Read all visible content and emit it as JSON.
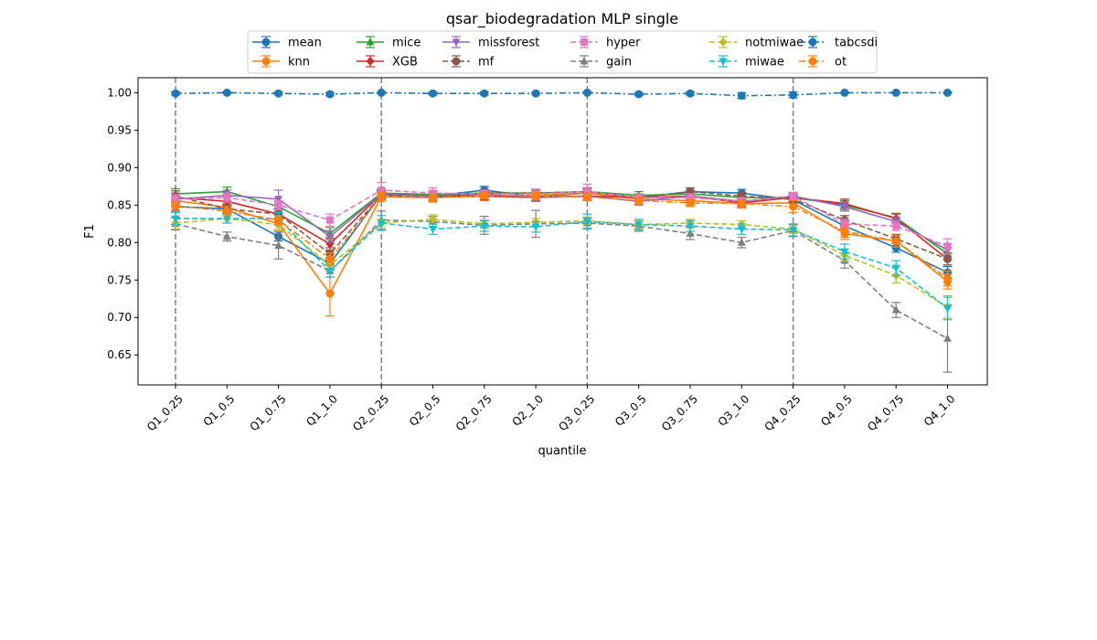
{
  "chart_data": {
    "type": "line",
    "title": "qsar_biodegradation MLP single",
    "xlabel": "quantile",
    "ylabel": "F1",
    "ylim": [
      0.61,
      1.02
    ],
    "yticks": [
      "0.65",
      "0.70",
      "0.75",
      "0.80",
      "0.85",
      "0.90",
      "0.95",
      "1.00"
    ],
    "categories": [
      "Q1_0.25",
      "Q1_0.5",
      "Q1_0.75",
      "Q1_1.0",
      "Q2_0.25",
      "Q2_0.5",
      "Q2_0.75",
      "Q2_1.0",
      "Q3_0.25",
      "Q3_0.5",
      "Q3_0.75",
      "Q3_1.0",
      "Q4_0.25",
      "Q4_0.5",
      "Q4_0.75",
      "Q4_1.0"
    ],
    "vertical_lines_at": [
      "Q1_0.25",
      "Q2_0.25",
      "Q3_0.25",
      "Q4_0.25"
    ],
    "grid": false,
    "legend_position": "top-center",
    "series": [
      {
        "name": "mean",
        "color": "#1f77b4",
        "dash": "solid",
        "marker": "circle",
        "values": [
          0.848,
          0.845,
          0.808,
          0.772,
          0.864,
          0.862,
          0.87,
          0.861,
          0.866,
          0.86,
          0.868,
          0.866,
          0.857,
          0.822,
          0.793,
          0.76
        ],
        "errors": [
          0.006,
          0.005,
          0.006,
          0.008,
          0.005,
          0.005,
          0.005,
          0.005,
          0.005,
          0.005,
          0.005,
          0.005,
          0.005,
          0.006,
          0.006,
          0.008
        ]
      },
      {
        "name": "knn",
        "color": "#ff7f0e",
        "dash": "solid",
        "marker": "circle",
        "values": [
          0.856,
          0.847,
          0.825,
          0.732,
          0.861,
          0.86,
          0.862,
          0.863,
          0.866,
          0.858,
          0.856,
          0.852,
          0.853,
          0.812,
          0.802,
          0.748
        ],
        "errors": [
          0.008,
          0.006,
          0.008,
          0.03,
          0.006,
          0.006,
          0.006,
          0.006,
          0.006,
          0.006,
          0.006,
          0.006,
          0.006,
          0.008,
          0.008,
          0.01
        ]
      },
      {
        "name": "mice",
        "color": "#2ca02c",
        "dash": "solid",
        "marker": "triangle",
        "values": [
          0.865,
          0.868,
          0.848,
          0.812,
          0.866,
          0.864,
          0.866,
          0.866,
          0.868,
          0.863,
          0.865,
          0.86,
          0.86,
          0.85,
          0.833,
          0.785
        ],
        "errors": [
          0.007,
          0.006,
          0.006,
          0.008,
          0.005,
          0.005,
          0.005,
          0.005,
          0.005,
          0.005,
          0.005,
          0.005,
          0.005,
          0.006,
          0.006,
          0.008
        ]
      },
      {
        "name": "XGB",
        "color": "#d62728",
        "dash": "solid",
        "marker": "diamond",
        "values": [
          0.86,
          0.855,
          0.838,
          0.798,
          0.865,
          0.862,
          0.862,
          0.86,
          0.862,
          0.86,
          0.862,
          0.853,
          0.86,
          0.852,
          0.832,
          0.778
        ],
        "errors": [
          0.006,
          0.006,
          0.006,
          0.008,
          0.005,
          0.005,
          0.005,
          0.005,
          0.005,
          0.005,
          0.005,
          0.005,
          0.005,
          0.006,
          0.006,
          0.008
        ]
      },
      {
        "name": "missforest",
        "color": "#9467bd",
        "dash": "solid",
        "marker": "tri_down",
        "values": [
          0.858,
          0.863,
          0.858,
          0.808,
          0.865,
          0.862,
          0.865,
          0.86,
          0.862,
          0.855,
          0.862,
          0.855,
          0.862,
          0.848,
          0.828,
          0.79
        ],
        "errors": [
          0.008,
          0.007,
          0.012,
          0.008,
          0.005,
          0.005,
          0.005,
          0.005,
          0.005,
          0.005,
          0.005,
          0.005,
          0.005,
          0.006,
          0.006,
          0.008
        ]
      },
      {
        "name": "mf",
        "color": "#8c564b",
        "dash": "dashed",
        "marker": "circle",
        "values": [
          0.862,
          0.845,
          0.838,
          0.785,
          0.863,
          0.86,
          0.866,
          0.866,
          0.868,
          0.86,
          0.868,
          0.862,
          0.858,
          0.83,
          0.805,
          0.778
        ],
        "errors": [
          0.007,
          0.006,
          0.007,
          0.008,
          0.005,
          0.005,
          0.005,
          0.005,
          0.005,
          0.005,
          0.005,
          0.005,
          0.005,
          0.006,
          0.006,
          0.008
        ]
      },
      {
        "name": "hyper",
        "color": "#e377c2",
        "dash": "dashed",
        "marker": "square",
        "values": [
          0.858,
          0.86,
          0.85,
          0.83,
          0.87,
          0.866,
          0.865,
          0.865,
          0.868,
          0.86,
          0.86,
          0.855,
          0.862,
          0.825,
          0.822,
          0.795
        ],
        "errors": [
          0.006,
          0.006,
          0.006,
          0.008,
          0.01,
          0.007,
          0.005,
          0.005,
          0.01,
          0.005,
          0.005,
          0.005,
          0.005,
          0.006,
          0.006,
          0.01
        ]
      },
      {
        "name": "gain",
        "color": "#7f7f7f",
        "dash": "dashed",
        "marker": "triangle",
        "values": [
          0.825,
          0.808,
          0.796,
          0.762,
          0.83,
          0.828,
          0.823,
          0.825,
          0.826,
          0.822,
          0.812,
          0.8,
          0.816,
          0.776,
          0.71,
          0.672
        ],
        "errors": [
          0.008,
          0.006,
          0.018,
          0.008,
          0.012,
          0.007,
          0.012,
          0.018,
          0.007,
          0.007,
          0.008,
          0.007,
          0.008,
          0.01,
          0.01,
          0.045
        ]
      },
      {
        "name": "notmiwae",
        "color": "#bcbd22",
        "dash": "dashed",
        "marker": "diamond",
        "values": [
          0.826,
          0.832,
          0.824,
          0.77,
          0.826,
          0.831,
          0.825,
          0.827,
          0.829,
          0.824,
          0.826,
          0.824,
          0.818,
          0.783,
          0.756,
          0.714
        ],
        "errors": [
          0.008,
          0.006,
          0.008,
          0.008,
          0.005,
          0.006,
          0.005,
          0.005,
          0.005,
          0.005,
          0.005,
          0.005,
          0.005,
          0.008,
          0.01,
          0.015
        ]
      },
      {
        "name": "miwae",
        "color": "#17becf",
        "dash": "dashed",
        "marker": "tri_down",
        "values": [
          0.832,
          0.832,
          0.832,
          0.762,
          0.826,
          0.818,
          0.822,
          0.821,
          0.828,
          0.824,
          0.822,
          0.818,
          0.817,
          0.788,
          0.766,
          0.712
        ],
        "errors": [
          0.008,
          0.006,
          0.008,
          0.008,
          0.01,
          0.007,
          0.007,
          0.007,
          0.01,
          0.007,
          0.007,
          0.007,
          0.008,
          0.01,
          0.01,
          0.015
        ]
      },
      {
        "name": "tabcsdi",
        "color": "#1f77b4",
        "dash": "dashdot",
        "marker": "circle",
        "values": [
          0.999,
          1.0,
          0.999,
          0.998,
          1.0,
          0.999,
          0.999,
          0.999,
          1.0,
          0.998,
          0.999,
          0.996,
          0.997,
          1.0,
          1.0,
          1.0
        ],
        "errors": [
          0.002,
          0.001,
          0.002,
          0.002,
          0.001,
          0.002,
          0.002,
          0.001,
          0.001,
          0.002,
          0.002,
          0.004,
          0.004,
          0.001,
          0.001,
          0.001
        ]
      },
      {
        "name": "ot",
        "color": "#ff7f0e",
        "dash": "dashdot",
        "marker": "circle",
        "values": [
          0.849,
          0.842,
          0.83,
          0.778,
          0.862,
          0.86,
          0.863,
          0.862,
          0.861,
          0.856,
          0.853,
          0.852,
          0.848,
          0.815,
          0.802,
          0.752
        ],
        "errors": [
          0.006,
          0.006,
          0.006,
          0.008,
          0.005,
          0.005,
          0.005,
          0.005,
          0.005,
          0.005,
          0.005,
          0.005,
          0.008,
          0.008,
          0.008,
          0.01
        ]
      }
    ]
  }
}
